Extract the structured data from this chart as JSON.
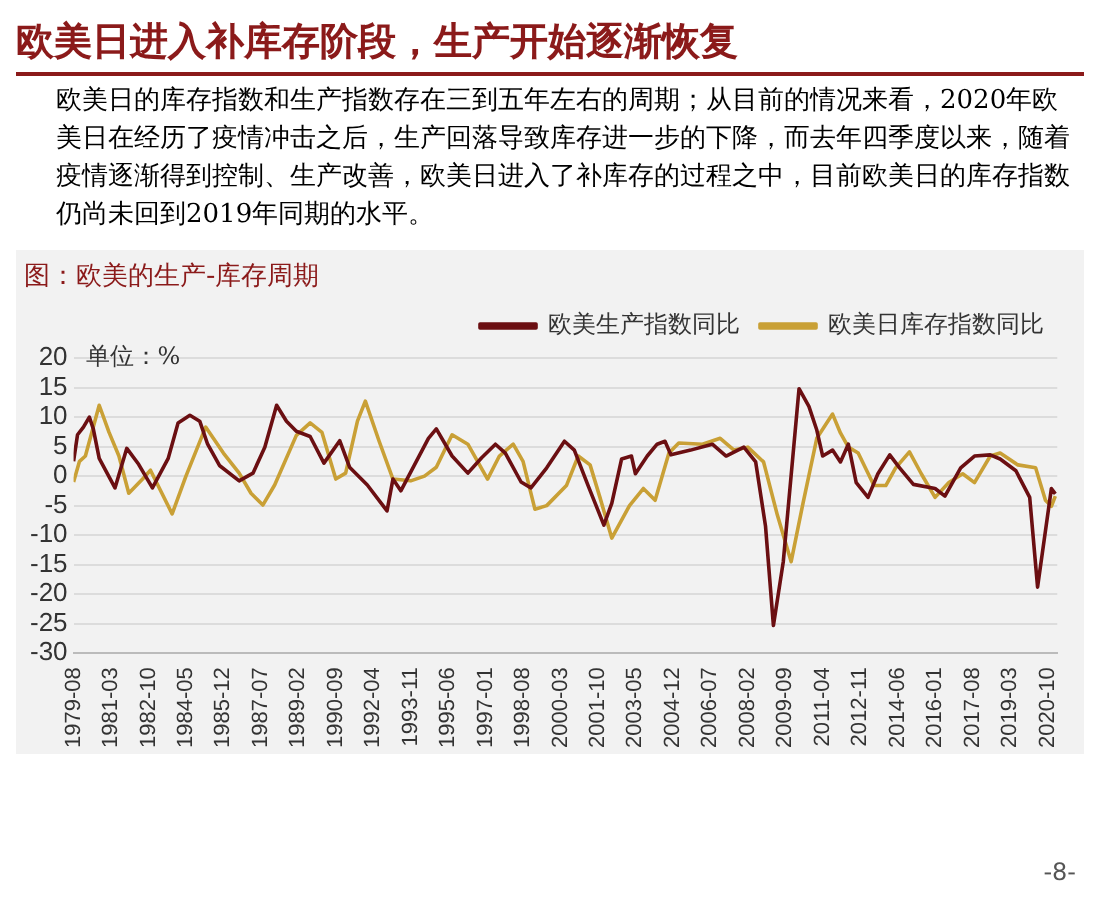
{
  "chart_data": {
    "type": "line",
    "title": "欧美日进入补库存阶段，生产开始逐渐恢复",
    "subtitle": "欧美日的库存指数和生产指数存在三到五年左右的周期；从目前的情况来看，2020年欧美日在经历了疫情冲击之后，生产回落导致库存进一步的下降，而去年四季度以来，随着疫情逐渐得到控制、生产改善，欧美日进入了补库存的过程之中，目前欧美日的库存指数仍尚未回到2019年同期的水平。",
    "annotations": [
      "图：欧美的生产-库存周期",
      "-8-"
    ],
    "ylabel": "单位：%",
    "legend": "top",
    "grid": "y",
    "xlim": [
      "1979-08",
      "2021-03"
    ],
    "xticks": [
      "1979-08",
      "1981-03",
      "1982-10",
      "1984-05",
      "1985-12",
      "1987-07",
      "1989-02",
      "1990-09",
      "1992-04",
      "1993-11",
      "1995-06",
      "1997-01",
      "1998-08",
      "2000-03",
      "2001-10",
      "2003-05",
      "2004-12",
      "2006-07",
      "2008-02",
      "2009-09",
      "2011-04",
      "2012-11",
      "2014-06",
      "2016-01",
      "2017-08",
      "2019-03",
      "2020-10"
    ],
    "ylim": [
      -30,
      20
    ],
    "yticks": [
      -30,
      -25,
      -20,
      -15,
      -10,
      -5,
      0,
      5,
      10,
      15,
      20
    ],
    "series": [
      {
        "name": "欧美生产指数同比",
        "color": "#6b0f12",
        "x": [
          "1979-08",
          "1979-10",
          "1980-01",
          "1980-04",
          "1980-06",
          "1980-09",
          "1981-05",
          "1981-11",
          "1982-05",
          "1982-12",
          "1983-08",
          "1984-01",
          "1984-07",
          "1984-12",
          "1985-04",
          "1985-10",
          "1986-08",
          "1987-03",
          "1987-09",
          "1988-03",
          "1988-08",
          "1989-01",
          "1989-08",
          "1990-03",
          "1990-11",
          "1991-04",
          "1992-01",
          "1992-11",
          "1993-02",
          "1993-06",
          "1994-08",
          "1994-12",
          "1995-08",
          "1996-04",
          "1996-11",
          "1997-06",
          "1997-11",
          "1998-07",
          "1998-12",
          "1999-08",
          "2000-05",
          "2000-10",
          "2001-05",
          "2002-01",
          "2002-05",
          "2002-10",
          "2003-03",
          "2003-05",
          "2003-11",
          "2004-04",
          "2004-08",
          "2004-11",
          "2005-09",
          "2006-08",
          "2007-03",
          "2007-12",
          "2008-06",
          "2008-11",
          "2009-03",
          "2009-08",
          "2010-04",
          "2010-09",
          "2011-01",
          "2011-04",
          "2011-09",
          "2012-01",
          "2012-05",
          "2012-09",
          "2013-03",
          "2013-08",
          "2014-02",
          "2014-07",
          "2015-02",
          "2016-01",
          "2016-06",
          "2017-02",
          "2017-09",
          "2018-05",
          "2018-10",
          "2019-06",
          "2020-01",
          "2020-05",
          "2020-12",
          "2021-02"
        ],
        "values": [
          2.5,
          7,
          8.3,
          10,
          8,
          3,
          -2,
          4.7,
          2,
          -2,
          3,
          9,
          10.3,
          9.3,
          5.4,
          1.8,
          -0.8,
          0.5,
          4.9,
          12,
          9.3,
          7.6,
          6.7,
          2.2,
          6,
          1.5,
          -1.5,
          -5.9,
          -0.5,
          -2.5,
          6.4,
          8,
          3.4,
          0.5,
          3.1,
          5.4,
          3.9,
          -1,
          -2,
          1.4,
          5.9,
          4.4,
          -1.6,
          -8.3,
          -4.6,
          2.9,
          3.4,
          0.4,
          3.4,
          5.4,
          5.9,
          3.6,
          4.4,
          5.4,
          3.4,
          4.9,
          2.4,
          -8.5,
          -25.3,
          -14.5,
          14.8,
          11.8,
          7.8,
          3.4,
          4.4,
          2.4,
          5.4,
          -1.1,
          -3.6,
          0.4,
          3.6,
          1.4,
          -1.4,
          -2.1,
          -3.4,
          1.4,
          3.4,
          3.6,
          2.9,
          0.9,
          -3.6,
          -18.8,
          -2.1,
          -3
        ]
      },
      {
        "name": "欧美日库存指数同比",
        "color": "#c9a036",
        "x": [
          "1979-08",
          "1979-11",
          "1980-02",
          "1980-09",
          "1981-02",
          "1981-07",
          "1981-12",
          "1982-07",
          "1982-11",
          "1983-10",
          "1984-05",
          "1985-03",
          "1985-12",
          "1986-08",
          "1987-02",
          "1987-08",
          "1988-02",
          "1989-01",
          "1989-08",
          "1990-02",
          "1990-09",
          "1991-02",
          "1991-08",
          "1991-12",
          "1992-07",
          "1993-02",
          "1993-11",
          "1994-06",
          "1994-12",
          "1995-08",
          "1996-04",
          "1997-02",
          "1997-08",
          "1998-03",
          "1998-08",
          "1999-02",
          "1999-08",
          "2000-06",
          "2000-12",
          "2001-06",
          "2001-11",
          "2002-05",
          "2003-02",
          "2003-09",
          "2004-03",
          "2004-10",
          "2005-03",
          "2006-03",
          "2006-12",
          "2007-07",
          "2008-02",
          "2008-10",
          "2009-05",
          "2009-12",
          "2010-06",
          "2011-01",
          "2011-09",
          "2012-01",
          "2012-05",
          "2012-10",
          "2013-06",
          "2013-12",
          "2014-05",
          "2014-12",
          "2015-06",
          "2016-01",
          "2016-08",
          "2017-03",
          "2017-09",
          "2018-05",
          "2018-10",
          "2019-07",
          "2020-04",
          "2020-09",
          "2020-12",
          "2021-02"
        ],
        "values": [
          -1,
          2.5,
          3.4,
          12,
          7.4,
          3.4,
          -2.9,
          -0.5,
          1,
          -6.4,
          0,
          8.3,
          3.9,
          0.5,
          -2.9,
          -4.9,
          -1.5,
          6.9,
          9,
          7.4,
          -0.5,
          0.5,
          9.3,
          12.7,
          5.9,
          -0.5,
          -0.8,
          0,
          1.5,
          7,
          5.4,
          -0.5,
          3.4,
          5.4,
          2.5,
          -5.6,
          -5,
          -1.6,
          3.4,
          1.9,
          -3.6,
          -10.5,
          -5,
          -2.1,
          -4.1,
          3.9,
          5.6,
          5.4,
          6.4,
          4.4,
          4.9,
          2.4,
          -6.6,
          -14.5,
          -4.6,
          6.4,
          10.5,
          7.3,
          4.9,
          3.9,
          -1.6,
          -1.6,
          1.4,
          4.1,
          0.4,
          -3.6,
          -1.1,
          0.4,
          -1.1,
          3.4,
          3.9,
          1.9,
          1.4,
          -4.1,
          -5.1,
          -3.4
        ]
      }
    ]
  }
}
